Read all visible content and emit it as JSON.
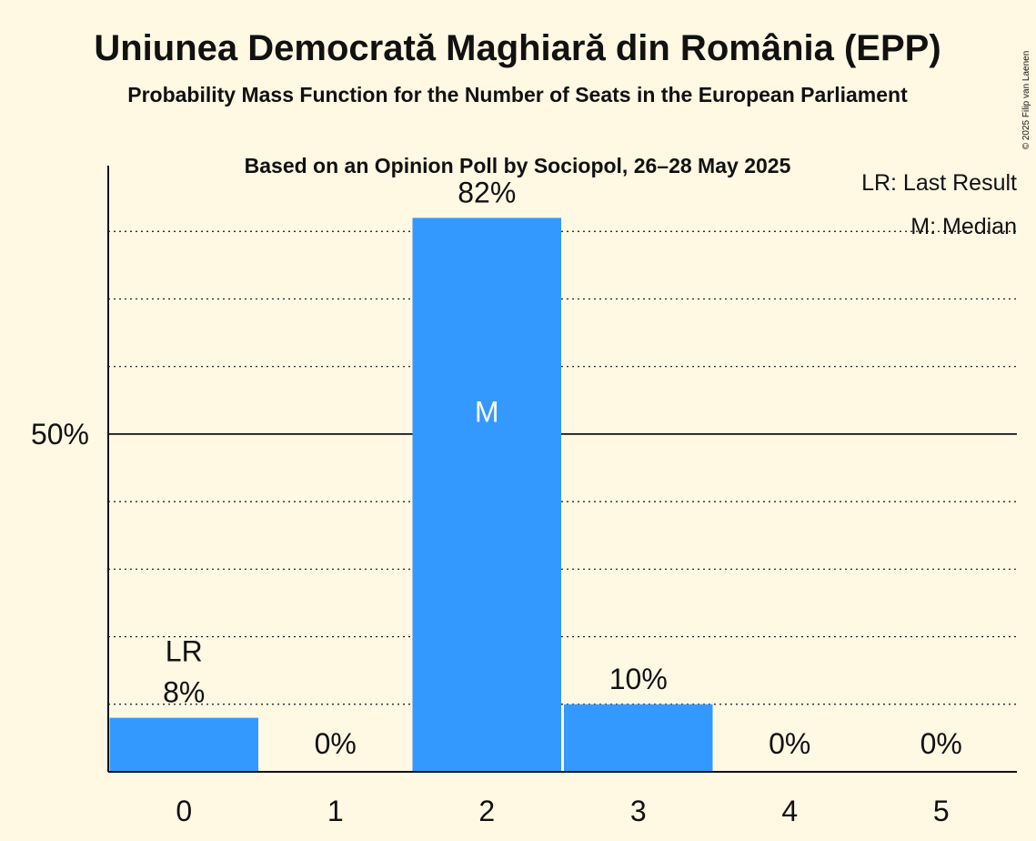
{
  "header": {
    "title": "Uniunea Democrată Maghiară din România (EPP)",
    "subtitle1": "Probability Mass Function for the Number of Seats in the European Parliament",
    "subtitle2": "Based on an Opinion Poll by Sociopol, 26–28 May 2025"
  },
  "legend": {
    "last_result": "LR: Last Result",
    "median": "M: Median"
  },
  "copyright": "© 2025 Filip van Laenen",
  "colors": {
    "background": "#fff8e3",
    "bar": "#3399ff",
    "text": "#111111"
  },
  "chart_data": {
    "type": "bar",
    "categories": [
      "0",
      "1",
      "2",
      "3",
      "4",
      "5"
    ],
    "values": [
      8,
      0,
      82,
      10,
      0,
      0
    ],
    "value_labels": [
      "8%",
      "0%",
      "82%",
      "10%",
      "0%",
      "0%"
    ],
    "ylim": [
      0,
      90
    ],
    "yticks": [
      {
        "value": 50,
        "label": "50%"
      }
    ],
    "gridlines": [
      10,
      20,
      30,
      40,
      60,
      70,
      80
    ],
    "markers": {
      "last_result": {
        "index": 0,
        "label": "LR"
      },
      "median": {
        "index": 2,
        "label": "M"
      }
    }
  }
}
